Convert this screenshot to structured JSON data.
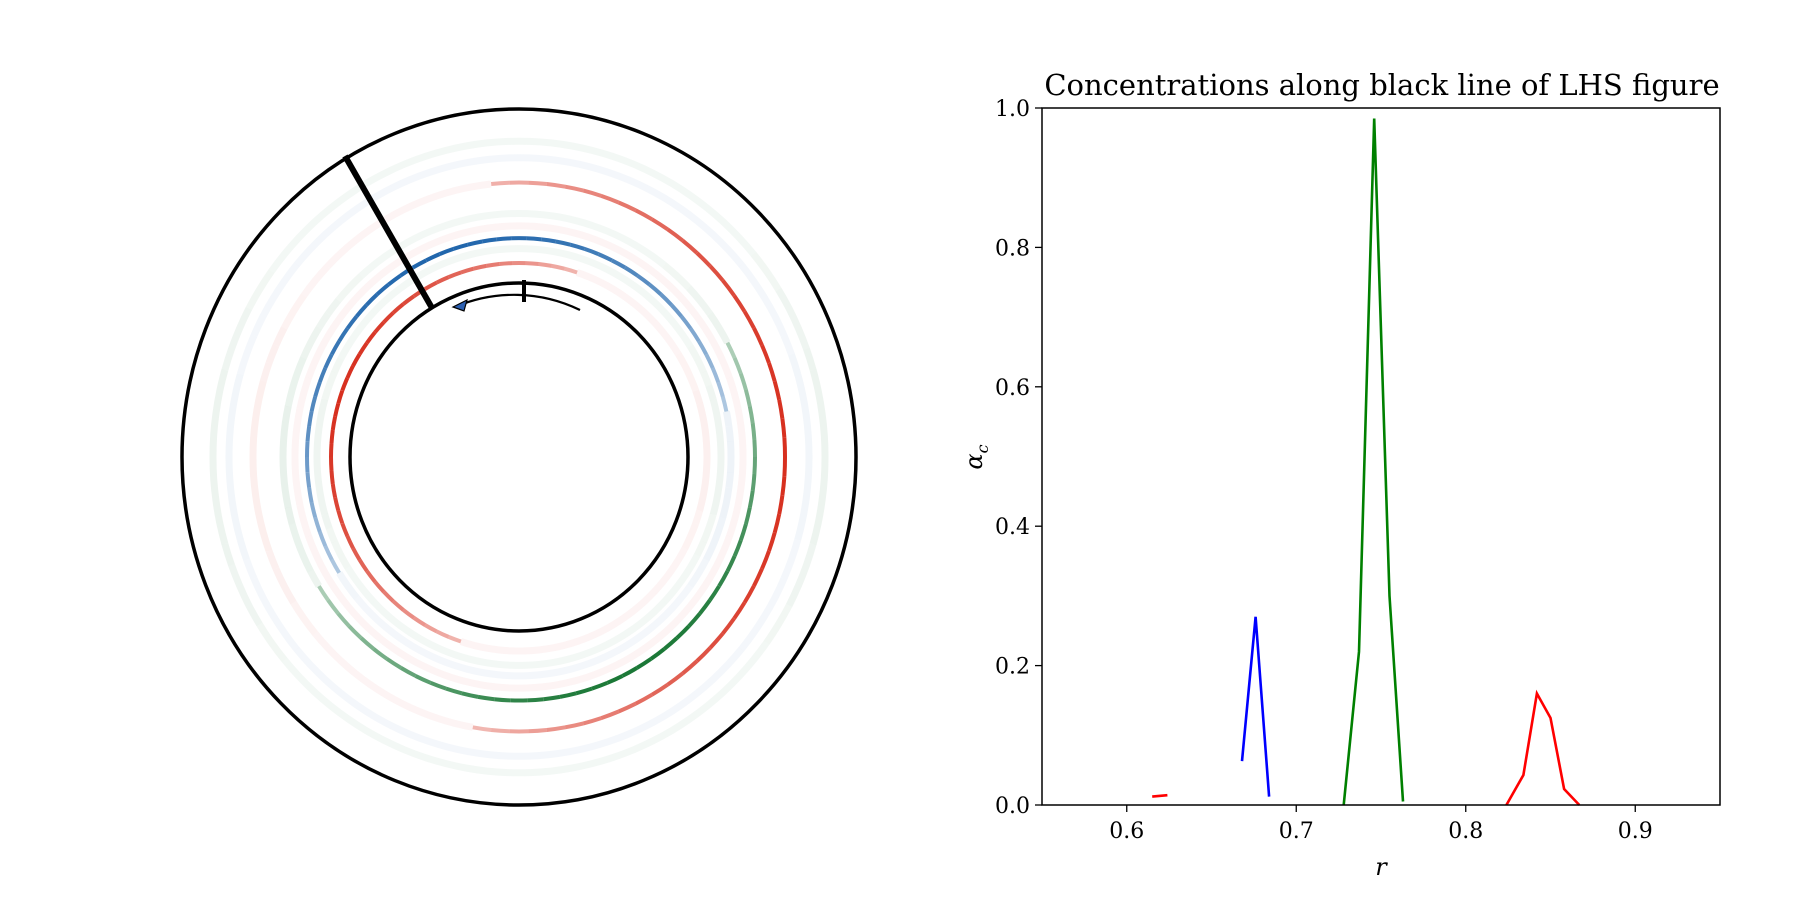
{
  "figure": {
    "left_panel": {
      "description_label": "annular-concentration-rings",
      "rings": [
        {
          "name": "red",
          "color": "#d7301f"
        },
        {
          "name": "green",
          "color": "#1b7837"
        },
        {
          "name": "blue",
          "color": "#2166ac"
        }
      ],
      "line_color": "#000000"
    }
  },
  "chart_data": {
    "type": "line",
    "title": "Concentrations along black line of LHS figure",
    "xlabel": "r",
    "ylabel": "αc",
    "xlim": [
      0.55,
      0.95
    ],
    "ylim": [
      0.0,
      1.0
    ],
    "xticks": [
      "0.6",
      "0.7",
      "0.8",
      "0.9"
    ],
    "yticks": [
      "0.0",
      "0.2",
      "0.4",
      "0.6",
      "0.8",
      "1.0"
    ],
    "series": [
      {
        "color": "#ff0000",
        "x": [
          0.615,
          0.624
        ],
        "y": [
          0.012,
          0.014
        ]
      },
      {
        "color": "#0000ff",
        "x": [
          0.668,
          0.676,
          0.684
        ],
        "y": [
          0.063,
          0.27,
          0.012
        ]
      },
      {
        "color": "#008000",
        "x": [
          0.728,
          0.737,
          0.746,
          0.755,
          0.763
        ],
        "y": [
          0.0,
          0.22,
          0.985,
          0.3,
          0.005
        ]
      },
      {
        "color": "#ff0000",
        "x": [
          0.824,
          0.834,
          0.842,
          0.85,
          0.858,
          0.867
        ],
        "y": [
          0.0,
          0.043,
          0.16,
          0.125,
          0.023,
          0.0
        ]
      }
    ]
  }
}
